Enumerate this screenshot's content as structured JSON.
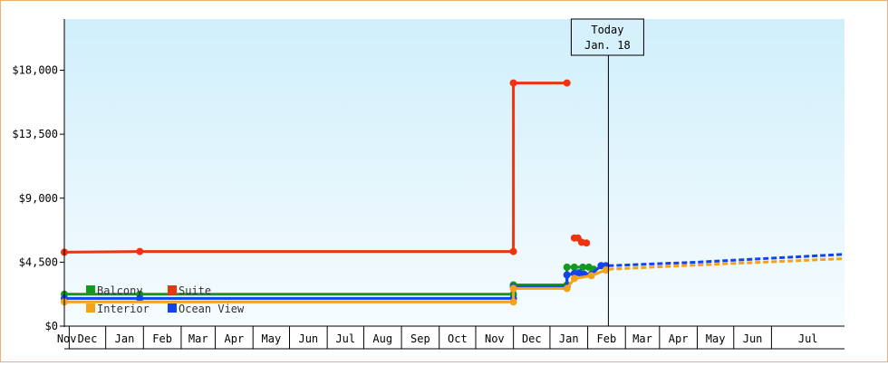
{
  "chart_data": {
    "type": "line",
    "title": "",
    "xlabel": "",
    "ylabel": "",
    "ylim": [
      0,
      21600
    ],
    "y_ticks": [
      "$0",
      "$4,500",
      "$9,000",
      "$13,500",
      "$18,000"
    ],
    "y_tick_values": [
      0,
      4500,
      9000,
      13500,
      18000
    ],
    "x_ticks": [
      "Nov",
      "Dec",
      "Jan",
      "Feb",
      "Mar",
      "Apr",
      "May",
      "Jun",
      "Jul",
      "Aug",
      "Sep",
      "Oct",
      "Nov",
      "Dec",
      "Jan",
      "Feb",
      "Mar",
      "Apr",
      "May",
      "Jun",
      "Jul"
    ],
    "x_range": [
      "2020-10-28",
      "2022-07-31"
    ],
    "today": {
      "label": "Today",
      "date_label": "Jan. 18",
      "date": "2022-01-18"
    },
    "grid": false,
    "legend_position": "bottom-left",
    "background_gradient": [
      "#d0effb",
      "#f6fcfe"
    ],
    "series": [
      {
        "name": "Suite",
        "color": "#ee3311",
        "points": [
          {
            "x": "2020-10-28",
            "y": 5200
          },
          {
            "x": "2020-12-29",
            "y": 5250
          },
          {
            "x": "2021-11-01",
            "y": 5250
          },
          {
            "x": "2021-11-01",
            "y": 17100
          },
          {
            "x": "2021-12-15",
            "y": 17100
          }
        ],
        "scatter": [
          {
            "x": "2021-12-21",
            "y": 6200
          },
          {
            "x": "2021-12-24",
            "y": 6200
          },
          {
            "x": "2021-12-27",
            "y": 5900
          },
          {
            "x": "2021-12-31",
            "y": 5850
          }
        ],
        "forecast": []
      },
      {
        "name": "Balcony",
        "color": "#119922",
        "points": [
          {
            "x": "2020-10-28",
            "y": 2250
          },
          {
            "x": "2020-12-29",
            "y": 2250
          },
          {
            "x": "2021-11-01",
            "y": 2250
          },
          {
            "x": "2021-11-01",
            "y": 2900
          },
          {
            "x": "2021-12-15",
            "y": 2900
          },
          {
            "x": "2021-12-15",
            "y": 4150
          },
          {
            "x": "2021-12-21",
            "y": 4150
          },
          {
            "x": "2021-12-28",
            "y": 4150
          },
          {
            "x": "2022-01-02",
            "y": 4150
          },
          {
            "x": "2022-01-06",
            "y": 4000
          }
        ],
        "scatter": [],
        "forecast": []
      },
      {
        "name": "Ocean View",
        "color": "#1144ee",
        "points": [
          {
            "x": "2020-10-28",
            "y": 1950
          },
          {
            "x": "2020-12-29",
            "y": 1950
          },
          {
            "x": "2021-11-01",
            "y": 1950
          },
          {
            "x": "2021-11-01",
            "y": 2750
          },
          {
            "x": "2021-12-15",
            "y": 2750
          },
          {
            "x": "2021-12-15",
            "y": 3600
          },
          {
            "x": "2021-12-21",
            "y": 3700
          },
          {
            "x": "2021-12-25",
            "y": 3750
          },
          {
            "x": "2021-12-29",
            "y": 3650
          },
          {
            "x": "2022-01-04",
            "y": 3650
          },
          {
            "x": "2022-01-12",
            "y": 4250
          },
          {
            "x": "2022-01-16",
            "y": 4250
          }
        ],
        "scatter": [],
        "forecast": [
          {
            "x": "2022-01-18",
            "y": 4250
          },
          {
            "x": "2022-04-01",
            "y": 4500
          },
          {
            "x": "2022-07-31",
            "y": 5050
          }
        ]
      },
      {
        "name": "Interior",
        "color": "#f4a21a",
        "points": [
          {
            "x": "2020-10-28",
            "y": 1700
          },
          {
            "x": "2021-11-01",
            "y": 1700
          },
          {
            "x": "2021-11-01",
            "y": 2650
          },
          {
            "x": "2021-12-15",
            "y": 2650
          },
          {
            "x": "2021-12-21",
            "y": 3350
          },
          {
            "x": "2022-01-04",
            "y": 3550
          },
          {
            "x": "2022-01-16",
            "y": 3950
          }
        ],
        "scatter": [],
        "forecast": [
          {
            "x": "2022-01-18",
            "y": 4000
          },
          {
            "x": "2022-04-01",
            "y": 4300
          },
          {
            "x": "2022-07-31",
            "y": 4750
          }
        ]
      }
    ],
    "legend": [
      "Balcony",
      "Suite",
      "Interior",
      "Ocean View"
    ]
  }
}
